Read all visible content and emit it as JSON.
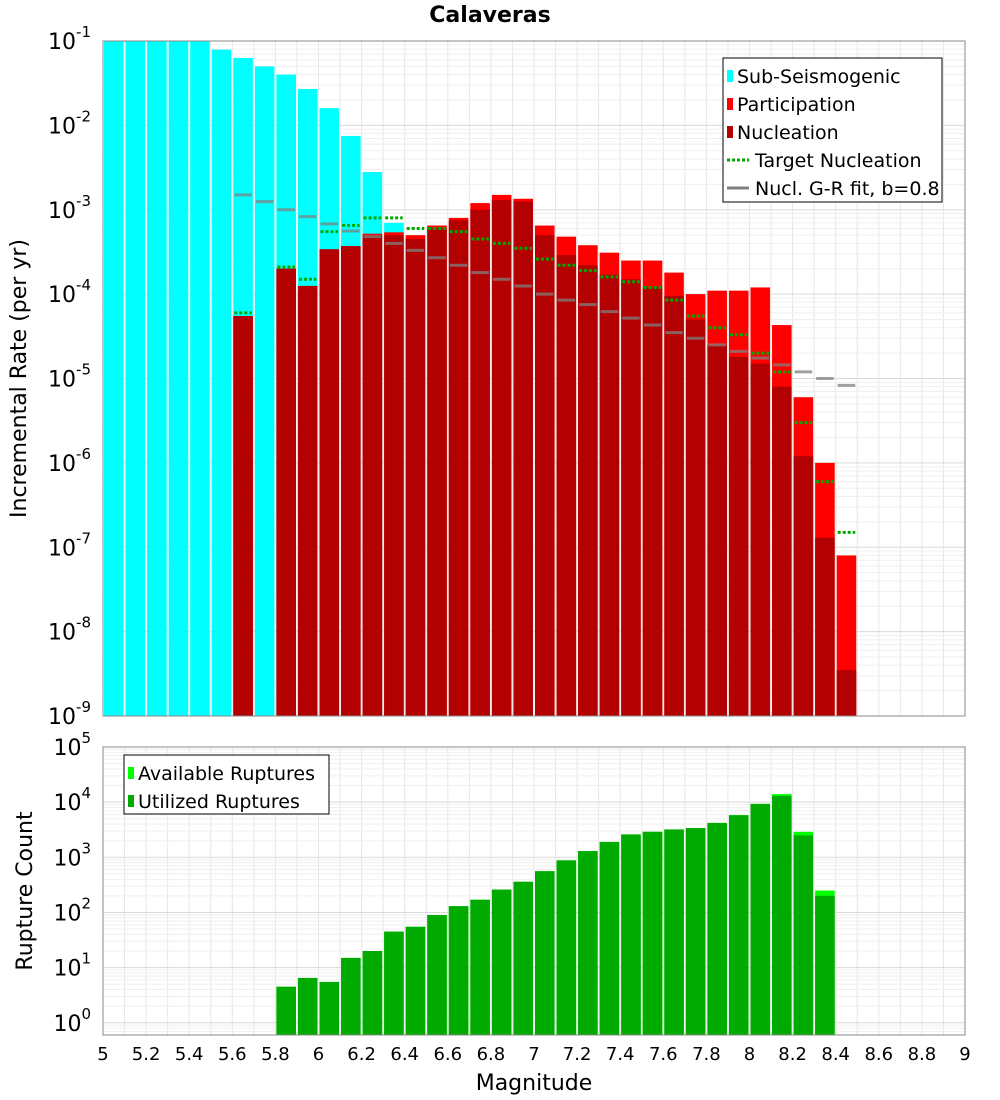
{
  "chart_data": [
    {
      "type": "bar",
      "title": "Calaveras",
      "xlabel": "",
      "ylabel": "Incremental Rate (per yr)",
      "xlim": [
        5,
        9
      ],
      "ylim": [
        1e-09,
        0.1
      ],
      "yscale": "log",
      "grid": true,
      "legend_position": "top-right",
      "x_ticks": [
        "5",
        "5.2",
        "5.4",
        "5.6",
        "5.8",
        "6",
        "6.2",
        "6.4",
        "6.6",
        "6.8",
        "7",
        "7.2",
        "7.4",
        "7.6",
        "7.8",
        "8",
        "8.2",
        "8.4",
        "8.6",
        "8.8",
        "9"
      ],
      "y_ticks": [
        {
          "base": "10",
          "exp": "-9"
        },
        {
          "base": "10",
          "exp": "-8"
        },
        {
          "base": "10",
          "exp": "-7"
        },
        {
          "base": "10",
          "exp": "-6"
        },
        {
          "base": "10",
          "exp": "-5"
        },
        {
          "base": "10",
          "exp": "-4"
        },
        {
          "base": "10",
          "exp": "-3"
        },
        {
          "base": "10",
          "exp": "-2"
        },
        {
          "base": "10",
          "exp": "-1"
        }
      ],
      "x": [
        5.05,
        5.15,
        5.25,
        5.35,
        5.45,
        5.55,
        5.65,
        5.75,
        5.85,
        5.95,
        6.05,
        6.15,
        6.25,
        6.35,
        6.45,
        6.55,
        6.65,
        6.75,
        6.85,
        6.95,
        7.05,
        7.15,
        7.25,
        7.35,
        7.45,
        7.55,
        7.65,
        7.75,
        7.85,
        7.95,
        8.05,
        8.15,
        8.25,
        8.35,
        8.45
      ],
      "bin_width": 0.1,
      "series": [
        {
          "name": "Sub-Seismogenic",
          "kind": "bar",
          "color": "#00ffff",
          "values": [
            0.1,
            0.1,
            0.1,
            0.1,
            0.1,
            0.079,
            0.063,
            0.05,
            0.04,
            0.027,
            0.016,
            0.0075,
            0.0028,
            0.0007,
            null,
            null,
            null,
            null,
            null,
            null,
            null,
            null,
            null,
            null,
            null,
            null,
            null,
            null,
            null,
            null,
            null,
            null,
            null,
            null,
            null
          ]
        },
        {
          "name": "Participation",
          "kind": "bar",
          "color": "#ff0000",
          "values": [
            null,
            null,
            null,
            null,
            null,
            null,
            5.5e-05,
            null,
            0.0002,
            0.000125,
            0.00034,
            0.00037,
            0.00052,
            0.00054,
            0.0005,
            0.00065,
            0.0008,
            0.0012,
            0.0015,
            0.00135,
            0.00065,
            0.00048,
            0.00038,
            0.00031,
            0.00025,
            0.00025,
            0.00018,
            0.0001,
            0.00011,
            0.00011,
            0.00012,
            4.3e-05,
            6e-06,
            1e-06,
            8e-08
          ]
        },
        {
          "name": "Nucleation",
          "kind": "bar",
          "color": "#b30000",
          "values": [
            null,
            null,
            null,
            null,
            null,
            null,
            5.5e-05,
            null,
            0.0002,
            0.000125,
            0.00034,
            0.00037,
            0.0005,
            0.0005,
            0.00045,
            0.0006,
            0.00075,
            0.001,
            0.0013,
            0.00125,
            0.0005,
            0.00029,
            0.00022,
            0.00017,
            0.00015,
            0.00012,
            9.5e-05,
            5e-05,
            2.5e-05,
            1.8e-05,
            1.5e-05,
            8e-06,
            1.2e-06,
            1.3e-07,
            3.5e-09
          ]
        },
        {
          "name": "Target Nucleation",
          "kind": "dotted-step",
          "color": "#00aa00",
          "values": [
            null,
            null,
            null,
            null,
            null,
            null,
            6e-05,
            null,
            0.00021,
            0.00015,
            0.00055,
            0.00065,
            0.0008,
            0.0008,
            0.0006,
            0.0006,
            0.00055,
            0.00045,
            0.0004,
            0.00035,
            0.00026,
            0.00022,
            0.00019,
            0.00016,
            0.00014,
            0.00012,
            8.5e-05,
            5.5e-05,
            4e-05,
            3.3e-05,
            2e-05,
            1.2e-05,
            3e-06,
            6e-07,
            1.5e-07
          ]
        },
        {
          "name": "Nucl. G-R fit, b=0.8",
          "kind": "step",
          "color": "#808080",
          "values": [
            null,
            null,
            null,
            null,
            null,
            null,
            0.0015,
            0.00125,
            0.001,
            0.00083,
            0.00068,
            0.00056,
            0.00048,
            0.0004,
            0.00033,
            0.00027,
            0.00022,
            0.00018,
            0.00015,
            0.000125,
            0.0001,
            8.5e-05,
            7.5e-05,
            6.2e-05,
            5.2e-05,
            4.3e-05,
            3.5e-05,
            3e-05,
            2.5e-05,
            2.1e-05,
            1.75e-05,
            1.45e-05,
            1.2e-05,
            1e-05,
            8.3e-06
          ]
        }
      ]
    },
    {
      "type": "bar",
      "title": "",
      "xlabel": "Magnitude",
      "ylabel": "Rupture Count",
      "xlim": [
        5,
        9
      ],
      "ylim": [
        0.6,
        100000
      ],
      "yscale": "log",
      "grid": true,
      "legend_position": "top-left",
      "x_ticks": [
        "5",
        "5.2",
        "5.4",
        "5.6",
        "5.8",
        "6",
        "6.2",
        "6.4",
        "6.6",
        "6.8",
        "7",
        "7.2",
        "7.4",
        "7.6",
        "7.8",
        "8",
        "8.2",
        "8.4",
        "8.6",
        "8.8",
        "9"
      ],
      "y_ticks": [
        {
          "base": "10",
          "exp": "0"
        },
        {
          "base": "10",
          "exp": "1"
        },
        {
          "base": "10",
          "exp": "2"
        },
        {
          "base": "10",
          "exp": "3"
        },
        {
          "base": "10",
          "exp": "4"
        },
        {
          "base": "10",
          "exp": "5"
        }
      ],
      "x": [
        5.85,
        5.95,
        6.05,
        6.15,
        6.25,
        6.35,
        6.45,
        6.55,
        6.65,
        6.75,
        6.85,
        6.95,
        7.05,
        7.15,
        7.25,
        7.35,
        7.45,
        7.55,
        7.65,
        7.75,
        7.85,
        7.95,
        8.05,
        8.15,
        8.25,
        8.35
      ],
      "bin_width": 0.1,
      "series": [
        {
          "name": "Available Ruptures",
          "kind": "bar",
          "color": "#00ff00",
          "values": [
            4.5,
            6.5,
            5.5,
            15,
            20,
            45,
            55,
            90,
            130,
            170,
            260,
            360,
            560,
            880,
            1300,
            1900,
            2600,
            2900,
            3200,
            3400,
            4200,
            5800,
            9300,
            14000,
            2900,
            250
          ]
        },
        {
          "name": "Utilized Ruptures",
          "kind": "bar",
          "color": "#00aa00",
          "values": [
            4.5,
            6.5,
            5.5,
            15,
            20,
            45,
            55,
            90,
            130,
            170,
            260,
            360,
            560,
            880,
            1300,
            1900,
            2600,
            2900,
            3200,
            3400,
            4200,
            5800,
            9300,
            13000,
            2500,
            200
          ]
        }
      ]
    }
  ]
}
